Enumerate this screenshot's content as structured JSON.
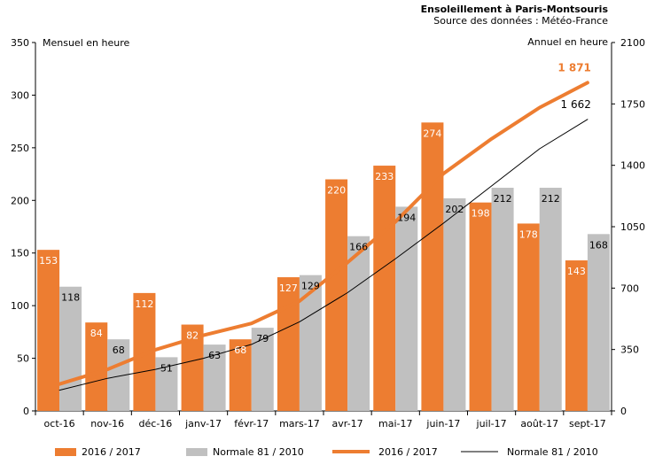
{
  "chart_data": {
    "type": "bar",
    "title": "Ensoleillement à Paris-Montsouris",
    "subtitle": "Source des données : Météo-France",
    "ylabel_left": "Mensuel en heure",
    "ylabel_right": "Annuel en heure",
    "categories": [
      "oct-16",
      "nov-16",
      "déc-16",
      "janv-17",
      "févr-17",
      "mars-17",
      "avr-17",
      "mai-17",
      "juin-17",
      "juil-17",
      "août-17",
      "sept-17"
    ],
    "y_left": {
      "min": 0,
      "max": 350,
      "ticks": [
        0,
        50,
        100,
        150,
        200,
        250,
        300,
        350
      ]
    },
    "y_right": {
      "min": 0,
      "max": 2100,
      "ticks": [
        0,
        350,
        700,
        1050,
        1400,
        1750,
        2100
      ]
    },
    "series": [
      {
        "name": "2016 / 2017",
        "kind": "bar",
        "axis": "left",
        "color": "#ed7d31",
        "label_color": "#ffffff",
        "values": [
          153,
          84,
          112,
          82,
          68,
          127,
          220,
          233,
          274,
          198,
          178,
          143
        ]
      },
      {
        "name": "Normale 81 / 2010",
        "kind": "bar",
        "axis": "left",
        "color": "#c0c0c0",
        "label_color": "#000000",
        "values": [
          118,
          68,
          51,
          63,
          79,
          129,
          166,
          194,
          202,
          212,
          212,
          168
        ]
      },
      {
        "name": "2016 / 2017",
        "kind": "line",
        "axis": "right",
        "color": "#ed7d31",
        "stroke": 4,
        "values": [
          153,
          237,
          349,
          431,
          499,
          626,
          846,
          1079,
          1353,
          1551,
          1729,
          1871
        ]
      },
      {
        "name": "Normale 81 / 2010",
        "kind": "line",
        "axis": "right",
        "color": "#000000",
        "stroke": 1,
        "values": [
          118,
          186,
          237,
          300,
          379,
          508,
          674,
          868,
          1070,
          1282,
          1494,
          1662
        ]
      }
    ],
    "end_labels": [
      {
        "series_index": 2,
        "text": "1 871",
        "color": "#ed7d31"
      },
      {
        "series_index": 3,
        "text": "1 662",
        "color": "#000000"
      }
    ],
    "legend_position": "bottom"
  }
}
